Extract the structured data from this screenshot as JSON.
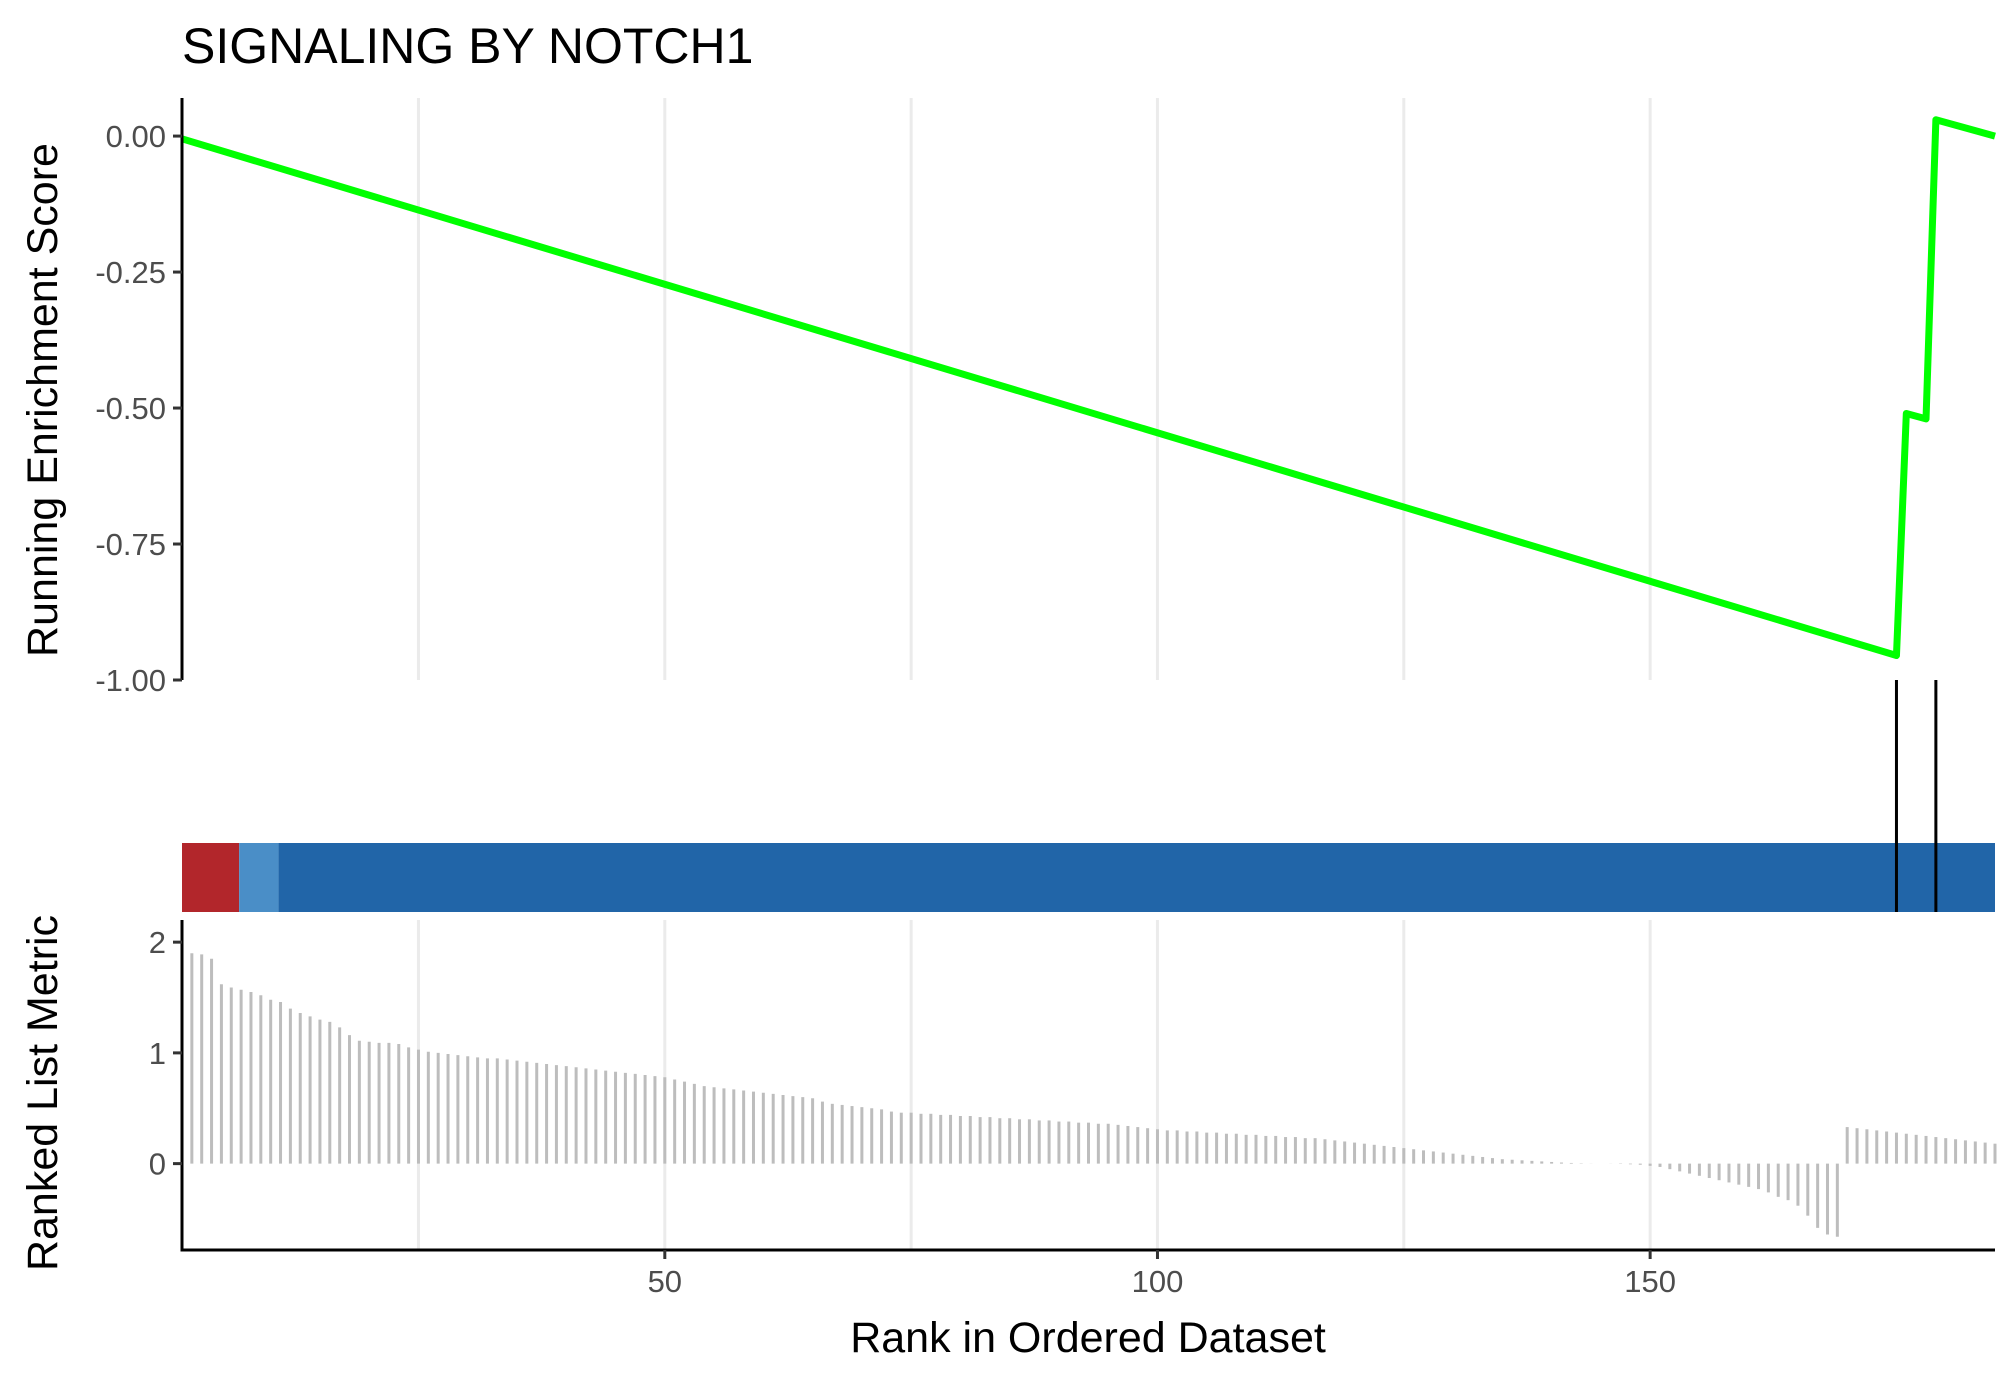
{
  "chart_data": {
    "type": "line",
    "title": "SIGNALING BY NOTCH1",
    "xlabel": "Rank in Ordered Dataset",
    "xlim": [
      1,
      185
    ],
    "xticks": [
      50,
      100,
      150
    ],
    "panels": {
      "running_score": {
        "ylabel": "Running Enrichment Score",
        "ylim": [
          -1.0,
          0.07
        ],
        "yticks": [
          0.0,
          -0.25,
          -0.5,
          -0.75,
          -1.0
        ],
        "ytick_labels": [
          "0.00",
          "-0.25",
          "-0.50",
          "-0.75",
          "-1.00"
        ],
        "line_color": "#00ff00",
        "points": [
          {
            "x": 1,
            "y": -0.005
          },
          {
            "x": 175,
            "y": -0.955
          },
          {
            "x": 176,
            "y": -0.51
          },
          {
            "x": 178,
            "y": -0.52
          },
          {
            "x": 179,
            "y": 0.03
          },
          {
            "x": 185,
            "y": 0.0
          }
        ]
      },
      "gene_hits": {
        "positions": [
          175,
          179
        ],
        "color_bar": [
          {
            "from": 1,
            "to": 6.8,
            "color": "#b2262b"
          },
          {
            "from": 6.8,
            "to": 10.8,
            "color": "#4a8ec7"
          },
          {
            "from": 10.8,
            "to": 185,
            "color": "#2165a8"
          }
        ]
      },
      "ranked_metric": {
        "ylabel": "Ranked List Metric",
        "ylim": [
          -0.78,
          2.2
        ],
        "yticks": [
          0,
          1,
          2
        ],
        "ytick_labels": [
          "0",
          "1",
          "2"
        ],
        "bar_color": "#bdbdbd",
        "values": [
          1.94,
          1.9,
          1.89,
          1.85,
          1.62,
          1.59,
          1.57,
          1.55,
          1.52,
          1.48,
          1.46,
          1.4,
          1.36,
          1.33,
          1.3,
          1.28,
          1.23,
          1.16,
          1.11,
          1.1,
          1.09,
          1.09,
          1.08,
          1.05,
          1.03,
          1.01,
          1.0,
          0.99,
          0.98,
          0.97,
          0.96,
          0.95,
          0.95,
          0.94,
          0.93,
          0.92,
          0.91,
          0.9,
          0.89,
          0.88,
          0.87,
          0.86,
          0.85,
          0.84,
          0.83,
          0.82,
          0.81,
          0.8,
          0.79,
          0.78,
          0.76,
          0.74,
          0.72,
          0.7,
          0.69,
          0.68,
          0.67,
          0.66,
          0.65,
          0.64,
          0.63,
          0.62,
          0.61,
          0.6,
          0.59,
          0.56,
          0.54,
          0.53,
          0.52,
          0.51,
          0.5,
          0.49,
          0.47,
          0.46,
          0.46,
          0.45,
          0.45,
          0.44,
          0.44,
          0.43,
          0.43,
          0.42,
          0.42,
          0.41,
          0.41,
          0.4,
          0.4,
          0.39,
          0.39,
          0.38,
          0.38,
          0.37,
          0.37,
          0.36,
          0.36,
          0.35,
          0.34,
          0.33,
          0.32,
          0.31,
          0.3,
          0.3,
          0.29,
          0.29,
          0.28,
          0.28,
          0.27,
          0.27,
          0.26,
          0.26,
          0.25,
          0.25,
          0.24,
          0.24,
          0.23,
          0.23,
          0.22,
          0.21,
          0.2,
          0.19,
          0.18,
          0.17,
          0.16,
          0.15,
          0.14,
          0.13,
          0.12,
          0.11,
          0.1,
          0.09,
          0.08,
          0.07,
          0.06,
          0.05,
          0.04,
          0.035,
          0.03,
          0.025,
          0.02,
          0.015,
          0.01,
          0.006,
          0.003,
          0.001,
          0,
          -0.001,
          -0.003,
          -0.006,
          -0.01,
          -0.02,
          -0.03,
          -0.05,
          -0.07,
          -0.09,
          -0.11,
          -0.13,
          -0.15,
          -0.17,
          -0.19,
          -0.21,
          -0.23,
          -0.26,
          -0.3,
          -0.33,
          -0.38,
          -0.47,
          -0.58,
          -0.64,
          -0.66,
          0.33,
          0.32,
          0.31,
          0.3,
          0.29,
          0.28,
          0.27,
          0.26,
          0.25,
          0.24,
          0.23,
          0.22,
          0.21,
          0.2,
          0.19,
          0.18
        ]
      }
    }
  }
}
